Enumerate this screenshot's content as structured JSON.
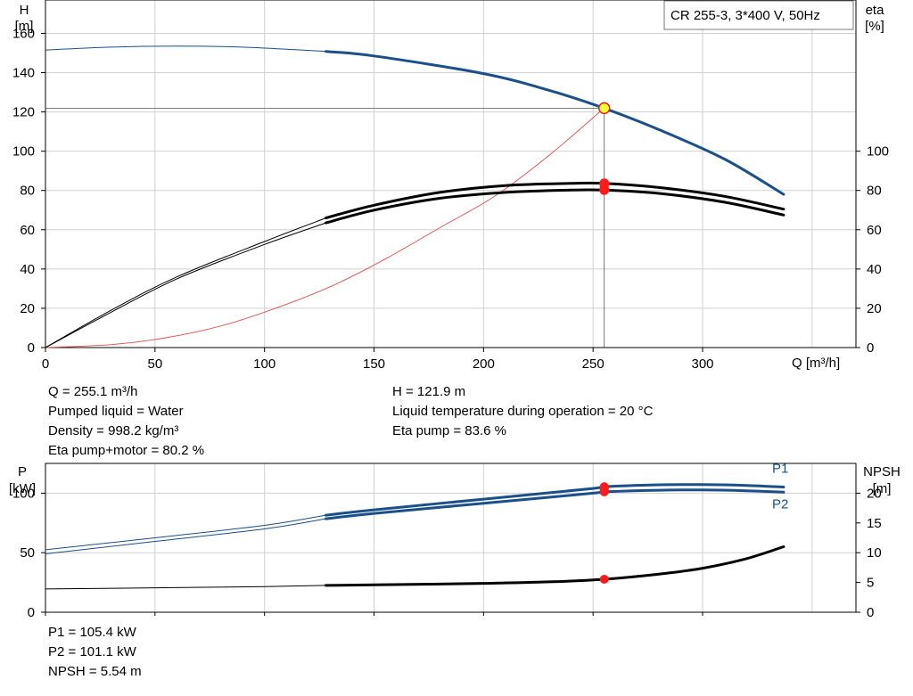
{
  "chart_data": [
    {
      "type": "line",
      "title": "CR 255-3, 3*400 V, 50Hz",
      "xlabel": "Q [m³/h]",
      "ylabel_left": [
        "H",
        "[m]"
      ],
      "ylabel_right": [
        "eta",
        "[%]"
      ],
      "xlim": [
        0,
        370
      ],
      "ylim_left": [
        0,
        177
      ],
      "ylim_right": [
        0,
        177
      ],
      "x_ticks": [
        0,
        50,
        100,
        150,
        200,
        250,
        300
      ],
      "y_ticks_left": [
        0,
        20,
        40,
        60,
        80,
        100,
        120,
        140,
        160
      ],
      "y_ticks_right": [
        0,
        20,
        40,
        60,
        80,
        100
      ],
      "grid": true,
      "series": [
        {
          "color": "#1a4f8a",
          "x": [
            0,
            30,
            60,
            90,
            128,
            150,
            200,
            230,
            255,
            280,
            310,
            337
          ],
          "y": [
            151.5,
            153,
            153.5,
            153,
            150.8,
            148.5,
            139.5,
            131,
            121.9,
            111,
            96,
            78
          ],
          "extended_from": 128
        },
        {
          "color": "#000000",
          "x": [
            0,
            30,
            60,
            100,
            128,
            150,
            180,
            210,
            240,
            255,
            280,
            310,
            337
          ],
          "y": [
            0,
            19,
            36,
            54,
            66,
            72.5,
            79,
            82.5,
            83.6,
            83.6,
            81.5,
            77,
            70.5
          ],
          "extended_from": 128
        },
        {
          "color": "#000000",
          "x": [
            0,
            30,
            60,
            100,
            128,
            150,
            180,
            210,
            240,
            255,
            280,
            310,
            337
          ],
          "y": [
            0,
            18,
            35,
            52.5,
            63.5,
            70,
            76,
            79,
            80.2,
            80.2,
            78.5,
            74,
            67.5
          ],
          "extended_from": 128
        },
        {
          "color": "#e05050",
          "x": [
            0,
            30,
            55,
            80,
            105,
            130,
            155,
            180,
            205,
            230,
            255
          ],
          "y": [
            0,
            1.5,
            5,
            11,
            20,
            31,
            45,
            61,
            77,
            98,
            121.9
          ]
        }
      ],
      "duty_point": {
        "x": 255.1,
        "y": 121.9,
        "eta_pump": 83.6,
        "eta_pump_motor": 80.2
      }
    },
    {
      "type": "line",
      "xlabel": "",
      "ylabel_left": [
        "P",
        "[kW]"
      ],
      "ylabel_right": [
        "NPSH",
        "[m]"
      ],
      "xlim": [
        0,
        370
      ],
      "ylim_left": [
        0,
        125
      ],
      "ylim_right": [
        0,
        25
      ],
      "y_ticks_left": [
        0,
        50,
        100
      ],
      "y_ticks_right": [
        0,
        5,
        10,
        15,
        20
      ],
      "grid": true,
      "series": [
        {
          "name": "P1",
          "color": "#1a4f8a",
          "x": [
            0,
            50,
            100,
            128,
            150,
            200,
            250,
            255,
            280,
            300,
            320,
            337
          ],
          "y": [
            52.5,
            62.5,
            73,
            81.5,
            86,
            95,
            104,
            105.4,
            107,
            107.2,
            106.5,
            105.2
          ],
          "extended_from": 128
        },
        {
          "name": "P2",
          "color": "#1a4f8a",
          "x": [
            0,
            50,
            100,
            128,
            150,
            200,
            250,
            255,
            280,
            300,
            320,
            337
          ],
          "y": [
            49,
            59.5,
            70,
            78.5,
            83,
            91.5,
            100,
            101.1,
            102.5,
            102.7,
            102,
            100.8
          ],
          "extended_from": 128
        },
        {
          "name": "NPSH",
          "color": "#000000",
          "axis": "right",
          "x": [
            0,
            50,
            100,
            128,
            150,
            200,
            230,
            255,
            280,
            300,
            320,
            337
          ],
          "y": [
            3.9,
            4.1,
            4.3,
            4.5,
            4.6,
            4.85,
            5.1,
            5.54,
            6.4,
            7.4,
            9.0,
            11.0
          ],
          "extended_from": 128
        }
      ],
      "duty_point": {
        "x": 255.1,
        "P1": 105.4,
        "P2": 101.1,
        "NPSH": 5.54
      }
    }
  ],
  "info_top_left": [
    "Q = 255.1 m³/h",
    "Pumped liquid = Water",
    "Density = 998.2 kg/m³",
    "Eta pump+motor = 80.2 %"
  ],
  "info_top_right": [
    "H = 121.9 m",
    "Liquid temperature during operation = 20 °C",
    "Eta pump = 83.6 %"
  ],
  "info_bottom": [
    "P1 = 105.4 kW",
    "P2 = 101.1 kW",
    "NPSH = 5.54 m"
  ],
  "colors": {
    "curve_blue": "#1a4f8a",
    "system_red": "#e05050",
    "grid": "#d0d0d0",
    "marker_yellow": "#ffff33"
  }
}
